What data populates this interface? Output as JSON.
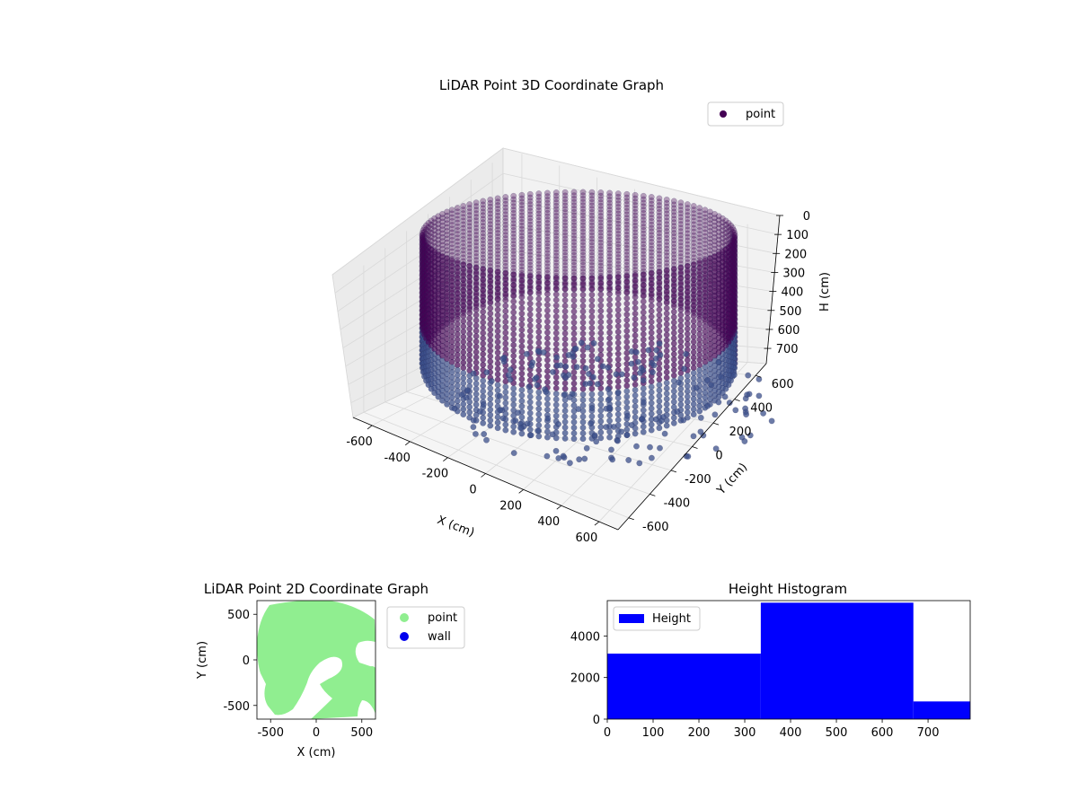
{
  "chart_data": [
    {
      "type": "scatter3d",
      "title": "LiDAR Point 3D Coordinate Graph",
      "xlabel": "X (cm)",
      "ylabel": "Y (cm)",
      "zlabel": "H (cm)",
      "xlim": [
        -700,
        700
      ],
      "ylim": [
        -700,
        700
      ],
      "zlim": [
        0,
        780
      ],
      "z_inverted": true,
      "x_ticks": [
        -600,
        -400,
        -200,
        0,
        200,
        400,
        600
      ],
      "y_ticks": [
        -600,
        -400,
        -200,
        0,
        200,
        400,
        600
      ],
      "z_ticks": [
        0,
        100,
        200,
        300,
        400,
        500,
        600,
        700
      ],
      "legend": {
        "placement": "top-right",
        "entries": [
          {
            "name": "point",
            "color": "#440154"
          }
        ]
      },
      "series": [
        {
          "name": "point",
          "shape": "cylindrical wall of points",
          "radius": 630,
          "h_range": [
            0,
            780
          ],
          "color": "#440154"
        }
      ],
      "grid": true
    },
    {
      "type": "scatter",
      "title": "LiDAR Point 2D Coordinate Graph",
      "xlabel": "X (cm)",
      "ylabel": "Y (cm)",
      "xlim": [
        -650,
        650
      ],
      "ylim": [
        -650,
        650
      ],
      "x_ticks": [
        -500,
        0,
        500
      ],
      "y_ticks": [
        -500,
        0,
        500
      ],
      "legend": {
        "placement": "outside-right",
        "entries": [
          {
            "name": "point",
            "color": "#90ee90"
          },
          {
            "name": "wall",
            "color": "#0000ee"
          }
        ]
      },
      "series": [
        {
          "name": "point",
          "color": "#90ee90",
          "shape": "filled disc with cut-outs",
          "radius": 630
        },
        {
          "name": "wall",
          "color": "#0000ee"
        }
      ]
    },
    {
      "type": "bar",
      "title": "Height Histogram",
      "xlim": [
        0,
        792
      ],
      "ylim": [
        0,
        5700
      ],
      "x_ticks": [
        0,
        100,
        200,
        300,
        400,
        500,
        600,
        700
      ],
      "y_ticks": [
        0,
        2000,
        4000
      ],
      "legend": {
        "placement": "top-left",
        "entries": [
          {
            "name": "Height",
            "color": "#0000ff"
          }
        ]
      },
      "bins": [
        {
          "from": 0,
          "to": 335,
          "count": 3150
        },
        {
          "from": 335,
          "to": 668,
          "count": 5600
        },
        {
          "from": 668,
          "to": 792,
          "count": 850
        }
      ],
      "color": "#0000ff"
    }
  ]
}
